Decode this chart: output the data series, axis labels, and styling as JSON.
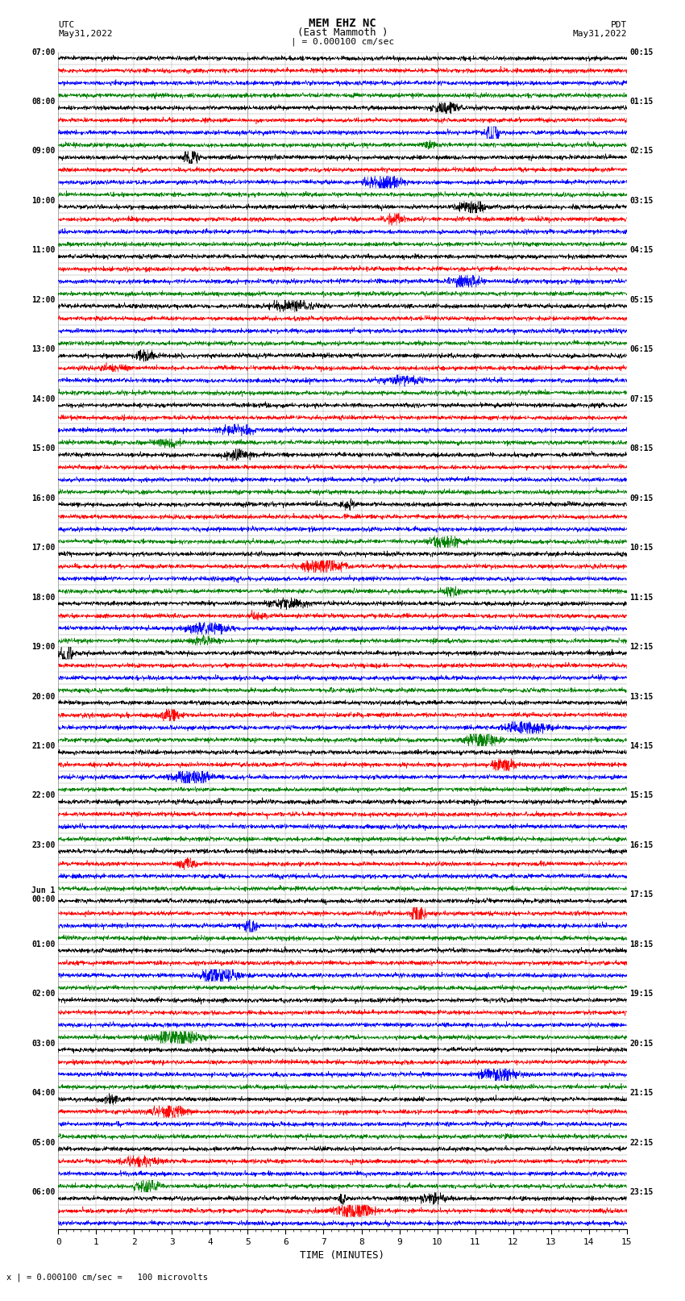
{
  "title_line1": "MEM EHZ NC",
  "title_line2": "(East Mammoth )",
  "scale_label": "| = 0.000100 cm/sec",
  "bottom_label": "x | = 0.000100 cm/sec =   100 microvolts",
  "utc_label": "UTC\nMay31,2022",
  "pdt_label": "PDT\nMay31,2022",
  "xlabel": "TIME (MINUTES)",
  "fig_width": 8.5,
  "fig_height": 16.13,
  "dpi": 100,
  "bg_color": "#ffffff",
  "trace_colors": [
    "black",
    "red",
    "blue",
    "green"
  ],
  "grid_color": "#999999",
  "minutes_per_row": 15,
  "left_labels": [
    "07:00",
    "",
    "",
    "",
    "08:00",
    "",
    "",
    "",
    "09:00",
    "",
    "",
    "",
    "10:00",
    "",
    "",
    "",
    "11:00",
    "",
    "",
    "",
    "12:00",
    "",
    "",
    "",
    "13:00",
    "",
    "",
    "",
    "14:00",
    "",
    "",
    "",
    "15:00",
    "",
    "",
    "",
    "16:00",
    "",
    "",
    "",
    "17:00",
    "",
    "",
    "",
    "18:00",
    "",
    "",
    "",
    "19:00",
    "",
    "",
    "",
    "20:00",
    "",
    "",
    "",
    "21:00",
    "",
    "",
    "",
    "22:00",
    "",
    "",
    "",
    "23:00",
    "",
    "",
    "",
    "Jun 1\n00:00",
    "",
    "",
    "",
    "01:00",
    "",
    "",
    "",
    "02:00",
    "",
    "",
    "",
    "03:00",
    "",
    "",
    "",
    "04:00",
    "",
    "",
    "",
    "05:00",
    "",
    "",
    "",
    "06:00",
    "",
    ""
  ],
  "right_labels": [
    "00:15",
    "",
    "",
    "",
    "01:15",
    "",
    "",
    "",
    "02:15",
    "",
    "",
    "",
    "03:15",
    "",
    "",
    "",
    "04:15",
    "",
    "",
    "",
    "05:15",
    "",
    "",
    "",
    "06:15",
    "",
    "",
    "",
    "07:15",
    "",
    "",
    "",
    "08:15",
    "",
    "",
    "",
    "09:15",
    "",
    "",
    "",
    "10:15",
    "",
    "",
    "",
    "11:15",
    "",
    "",
    "",
    "12:15",
    "",
    "",
    "",
    "13:15",
    "",
    "",
    "",
    "14:15",
    "",
    "",
    "",
    "15:15",
    "",
    "",
    "",
    "16:15",
    "",
    "",
    "",
    "17:15",
    "",
    "",
    "",
    "18:15",
    "",
    "",
    "",
    "19:15",
    "",
    "",
    "",
    "20:15",
    "",
    "",
    "",
    "21:15",
    "",
    "",
    "",
    "22:15",
    "",
    "",
    "",
    "23:15",
    "",
    ""
  ],
  "noise_seed": 42,
  "noise_amplitude": 0.08,
  "trace_linewidth": 0.4,
  "samples_per_row": 2700
}
